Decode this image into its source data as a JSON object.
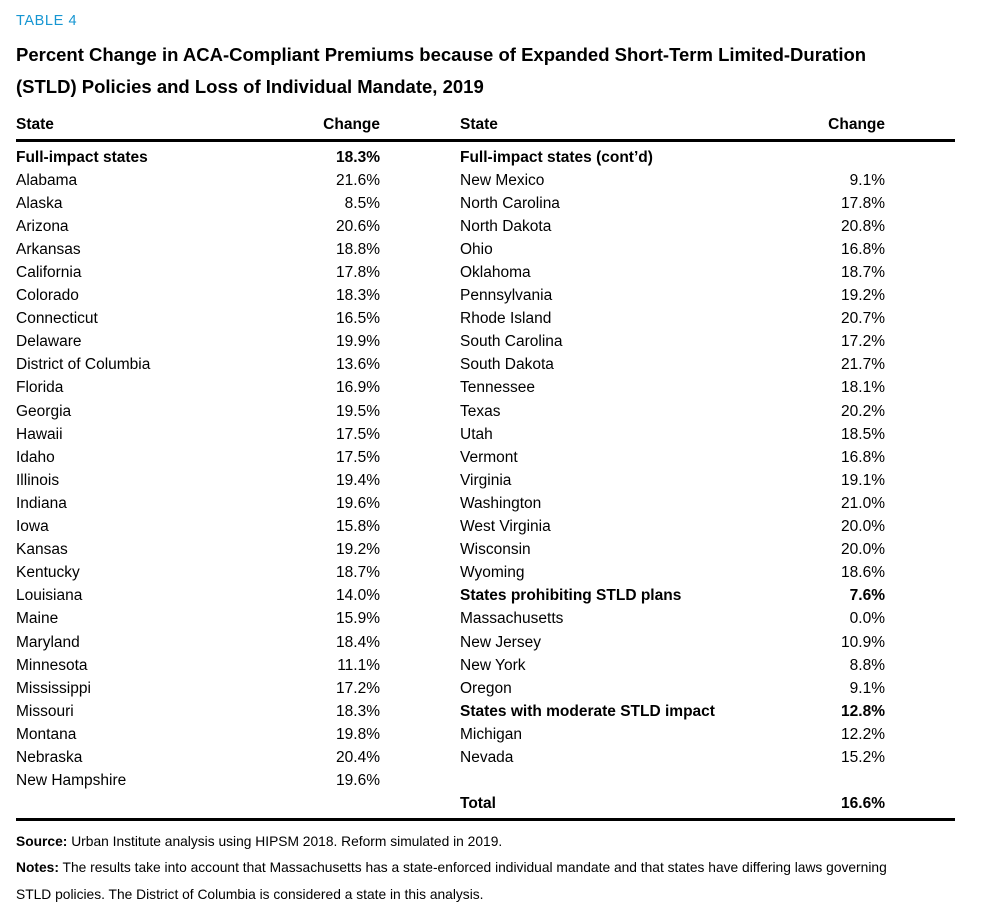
{
  "page": {
    "table_label": "TABLE 4",
    "title_line1": "Percent Change in ACA-Compliant Premiums because of Expanded Short-Term Limited-Duration",
    "title_line2": "(STLD) Policies and Loss of Individual Mandate, 2019"
  },
  "table": {
    "headers": {
      "state_left": "State",
      "change_left": "Change",
      "state_right": "State",
      "change_right": "Change"
    },
    "left_rows": [
      {
        "state": "Full-impact states",
        "change": "18.3%",
        "bold": true
      },
      {
        "state": "Alabama",
        "change": "21.6%"
      },
      {
        "state": "Alaska",
        "change": "8.5%"
      },
      {
        "state": "Arizona",
        "change": "20.6%"
      },
      {
        "state": "Arkansas",
        "change": "18.8%"
      },
      {
        "state": "California",
        "change": "17.8%"
      },
      {
        "state": "Colorado",
        "change": "18.3%"
      },
      {
        "state": "Connecticut",
        "change": "16.5%"
      },
      {
        "state": "Delaware",
        "change": "19.9%"
      },
      {
        "state": "District of Columbia",
        "change": "13.6%"
      },
      {
        "state": "Florida",
        "change": "16.9%"
      },
      {
        "state": "Georgia",
        "change": "19.5%"
      },
      {
        "state": "Hawaii",
        "change": "17.5%"
      },
      {
        "state": "Idaho",
        "change": "17.5%"
      },
      {
        "state": "Illinois",
        "change": "19.4%"
      },
      {
        "state": "Indiana",
        "change": "19.6%"
      },
      {
        "state": "Iowa",
        "change": "15.8%"
      },
      {
        "state": "Kansas",
        "change": "19.2%"
      },
      {
        "state": "Kentucky",
        "change": "18.7%"
      },
      {
        "state": "Louisiana",
        "change": "14.0%"
      },
      {
        "state": "Maine",
        "change": "15.9%"
      },
      {
        "state": "Maryland",
        "change": "18.4%"
      },
      {
        "state": "Minnesota",
        "change": "11.1%"
      },
      {
        "state": "Mississippi",
        "change": "17.2%"
      },
      {
        "state": "Missouri",
        "change": "18.3%"
      },
      {
        "state": "Montana",
        "change": "19.8%"
      },
      {
        "state": "Nebraska",
        "change": "20.4%"
      },
      {
        "state": "New Hampshire",
        "change": "19.6%"
      }
    ],
    "right_rows": [
      {
        "state": "Full-impact states (cont’d)",
        "change": "",
        "bold": true
      },
      {
        "state": "New Mexico",
        "change": "9.1%"
      },
      {
        "state": "North Carolina",
        "change": "17.8%"
      },
      {
        "state": "North Dakota",
        "change": "20.8%"
      },
      {
        "state": "Ohio",
        "change": "16.8%"
      },
      {
        "state": "Oklahoma",
        "change": "18.7%"
      },
      {
        "state": "Pennsylvania",
        "change": "19.2%"
      },
      {
        "state": "Rhode Island",
        "change": "20.7%"
      },
      {
        "state": "South Carolina",
        "change": "17.2%"
      },
      {
        "state": "South Dakota",
        "change": "21.7%"
      },
      {
        "state": "Tennessee",
        "change": "18.1%"
      },
      {
        "state": "Texas",
        "change": "20.2%"
      },
      {
        "state": "Utah",
        "change": "18.5%"
      },
      {
        "state": "Vermont",
        "change": "16.8%"
      },
      {
        "state": "Virginia",
        "change": "19.1%"
      },
      {
        "state": "Washington",
        "change": "21.0%"
      },
      {
        "state": "West Virginia",
        "change": "20.0%"
      },
      {
        "state": "Wisconsin",
        "change": "20.0%"
      },
      {
        "state": "Wyoming",
        "change": "18.6%"
      },
      {
        "state": "States prohibiting STLD plans",
        "change": "7.6%",
        "bold": true
      },
      {
        "state": "Massachusetts",
        "change": "0.0%"
      },
      {
        "state": "New Jersey",
        "change": "10.9%"
      },
      {
        "state": "New York",
        "change": "8.8%"
      },
      {
        "state": "Oregon",
        "change": "9.1%"
      },
      {
        "state": "States with moderate STLD impact",
        "change": "12.8%",
        "bold": true
      },
      {
        "state": "Michigan",
        "change": "12.2%"
      },
      {
        "state": "Nevada",
        "change": "15.2%"
      },
      {
        "state": "",
        "change": ""
      },
      {
        "state": "Total",
        "change": "16.6%",
        "bold": true
      }
    ]
  },
  "footer": {
    "source_label": "Source:",
    "source_text": "Urban Institute analysis using HIPSM 2018. Reform simulated in 2019.",
    "notes_label": "Notes:",
    "notes_text": "The results take into account that Massachusetts has a state-enforced individual mandate and that states have differing laws governing STLD policies. The District of Columbia is considered a state in this analysis."
  },
  "colors": {
    "accent_blue": "#1696d2",
    "text_black": "#000000"
  }
}
